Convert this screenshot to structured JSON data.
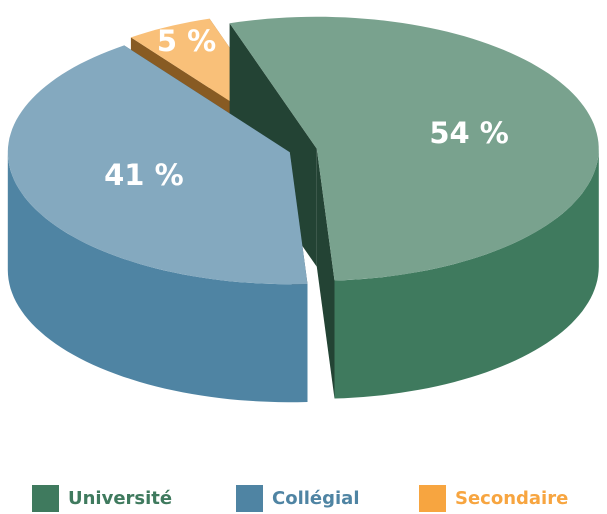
{
  "chart_data": {
    "type": "pie",
    "categories": [
      "Université",
      "Collégial",
      "Secondaire"
    ],
    "values": [
      54,
      41,
      5
    ],
    "value_labels": [
      "54 %",
      "41 %",
      "5 %"
    ],
    "colors": [
      "#3f7a5e",
      "#4f84a3",
      "#f7a540"
    ],
    "legend": "bottom"
  }
}
